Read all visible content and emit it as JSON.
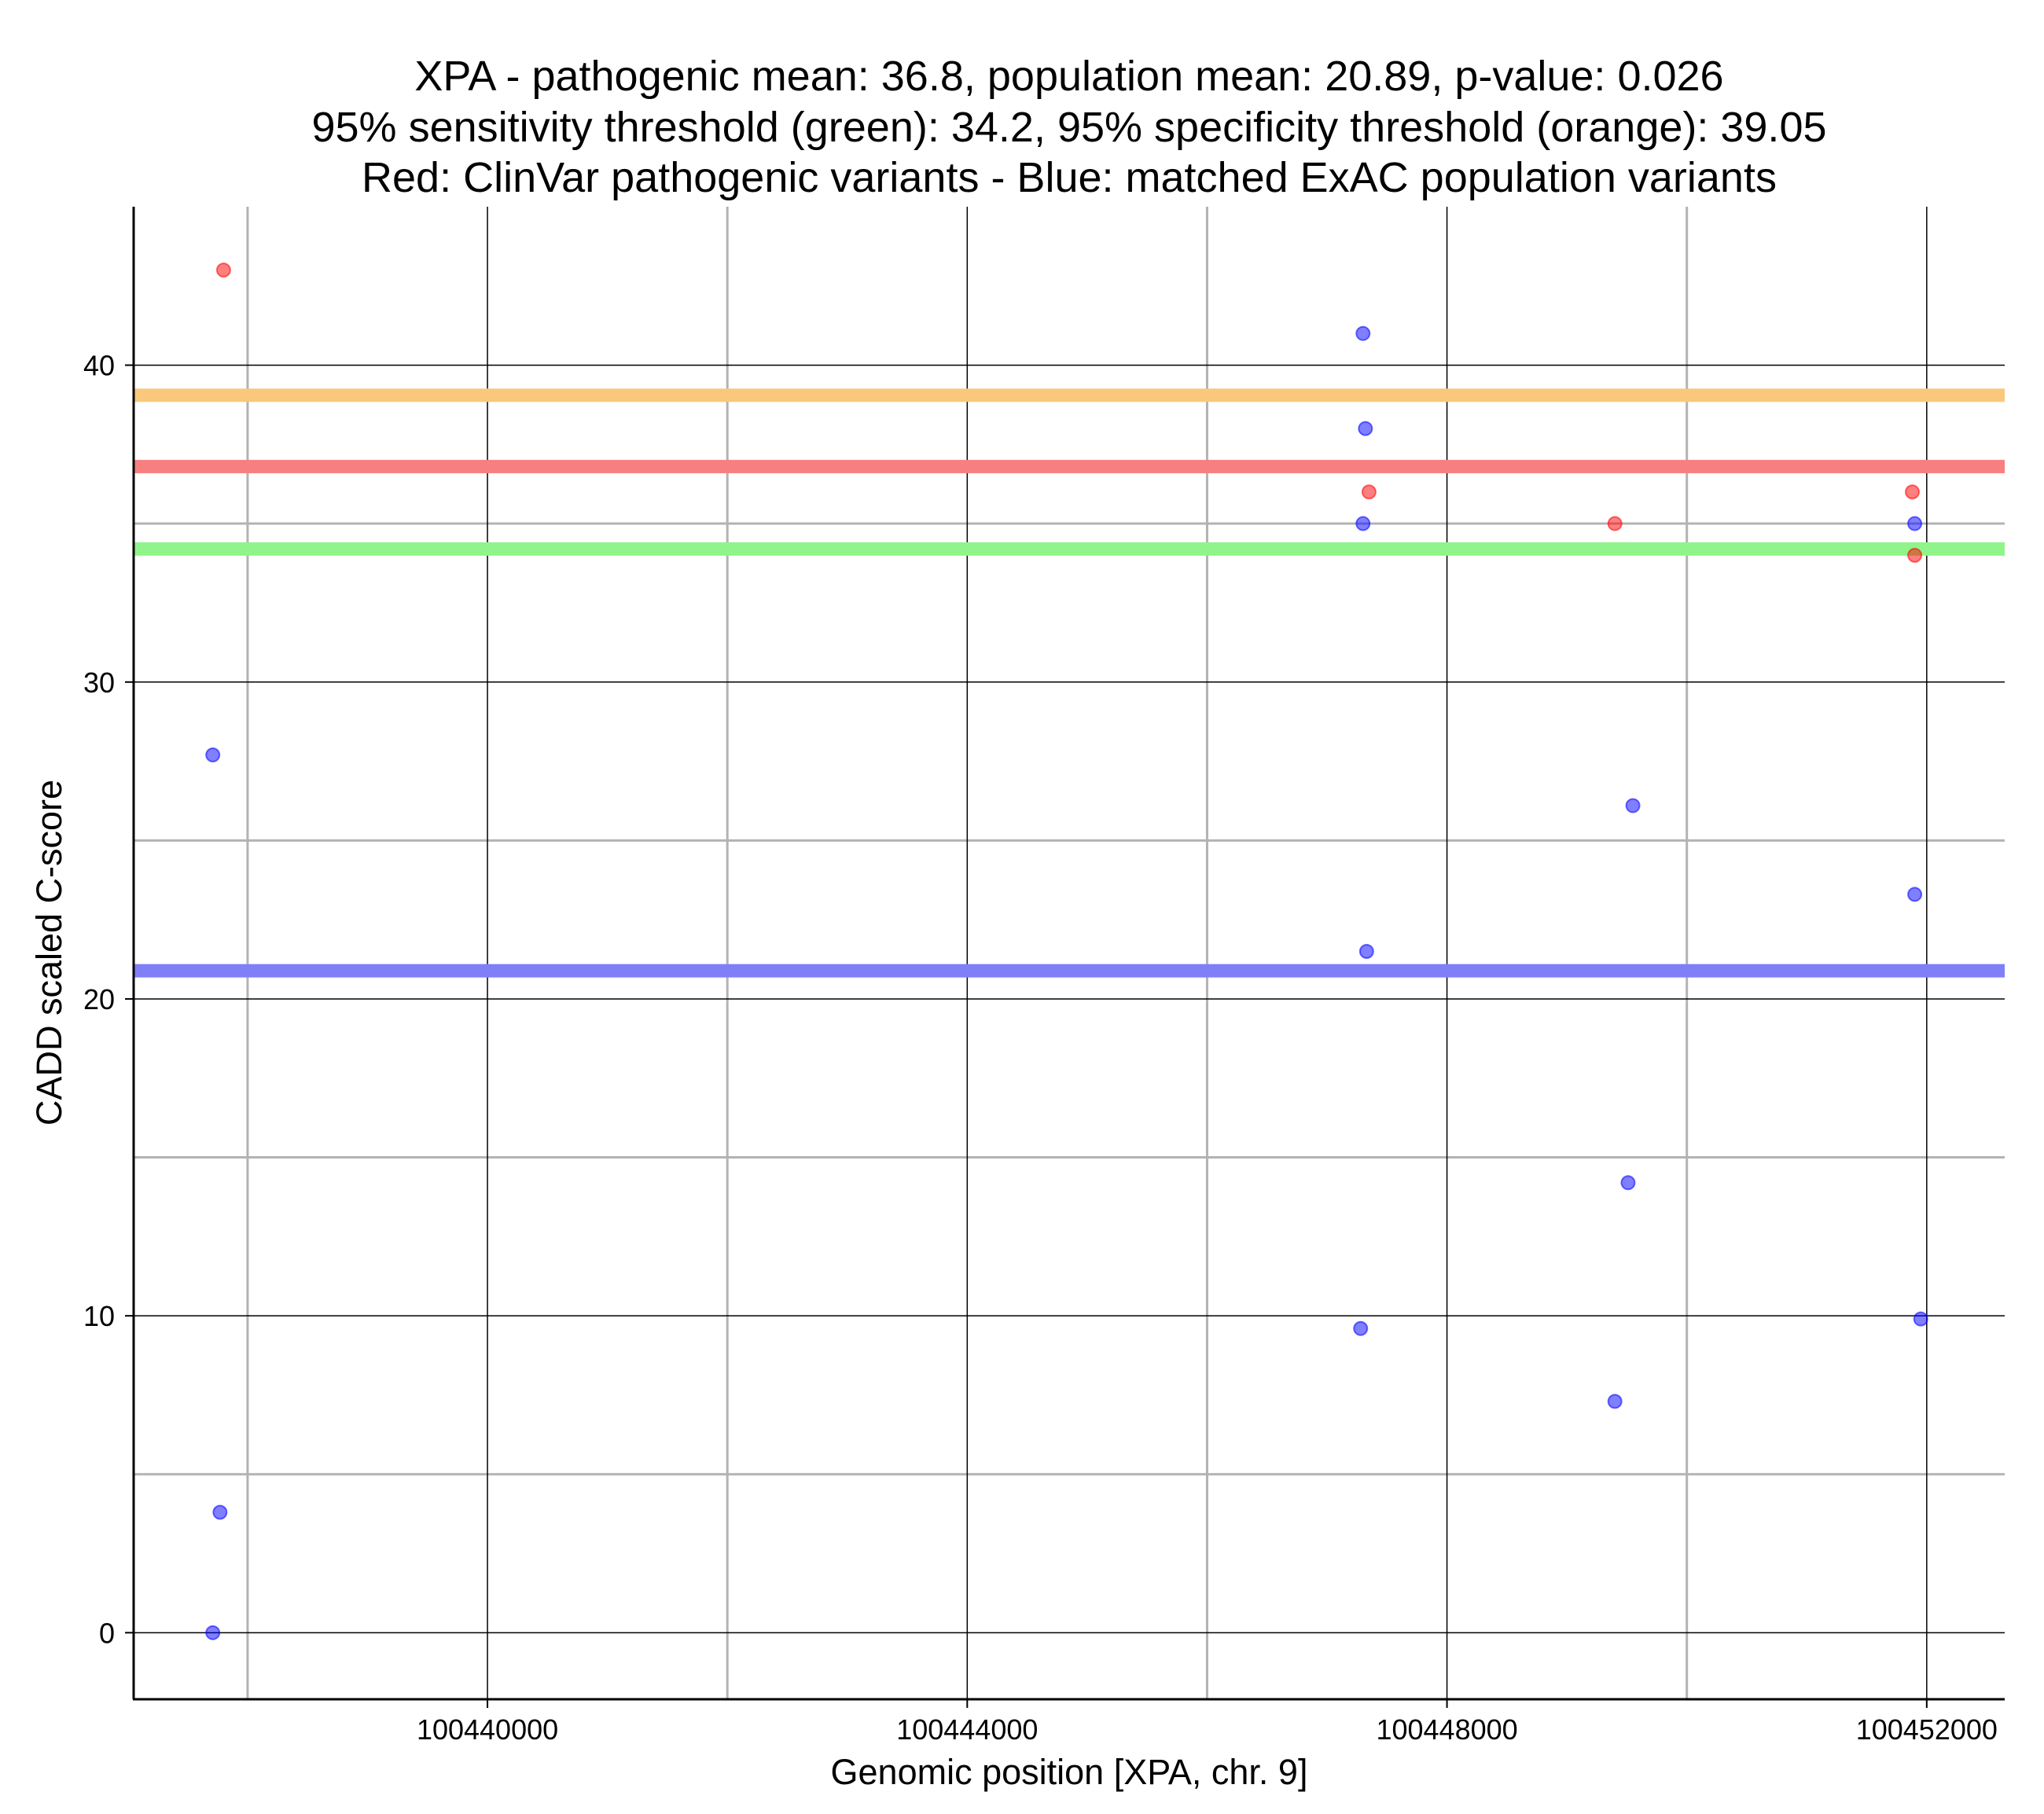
{
  "chart_data": {
    "type": "scatter",
    "title_lines": [
      "XPA - pathogenic mean: 36.8, population mean: 20.89, p-value: 0.026",
      "95% sensitivity threshold (green): 34.2, 95% specificity threshold (orange): 39.05",
      "Red: ClinVar pathogenic variants - Blue: matched ExAC population variants"
    ],
    "xlabel": "Genomic position [XPA, chr. 9]",
    "ylabel": "CADD scaled C-score",
    "xlim": [
      100437050,
      100452650
    ],
    "ylim": [
      -2.1,
      45.0
    ],
    "x_ticks": [
      100440000,
      100444000,
      100448000,
      100452000
    ],
    "x_tick_labels": [
      "100440000",
      "100444000",
      "100448000",
      "100452000"
    ],
    "x_minor_ticks": [
      100438000,
      100442000,
      100446000,
      100450000
    ],
    "y_ticks": [
      0,
      10,
      20,
      30,
      40
    ],
    "y_tick_labels": [
      "0",
      "10",
      "20",
      "30",
      "40"
    ],
    "y_minor_ticks": [
      5,
      15,
      25,
      35
    ],
    "grid": true,
    "reference_lines": [
      {
        "name": "specificity threshold",
        "value": 39.05,
        "color": "#f9c87c"
      },
      {
        "name": "pathogenic mean",
        "value": 36.8,
        "color": "#f77f80"
      },
      {
        "name": "sensitivity threshold",
        "value": 34.2,
        "color": "#8ff58a"
      },
      {
        "name": "population mean",
        "value": 20.89,
        "color": "#7f7ff7"
      }
    ],
    "series": [
      {
        "name": "ClinVar pathogenic variants",
        "color": "#ff0000",
        "points": [
          {
            "x": 100437800,
            "y": 43.0
          },
          {
            "x": 100447350,
            "y": 36.0
          },
          {
            "x": 100449400,
            "y": 35.0
          },
          {
            "x": 100451880,
            "y": 36.0
          },
          {
            "x": 100451900,
            "y": 34.0
          }
        ]
      },
      {
        "name": "matched ExAC population variants",
        "color": "#0000ff",
        "points": [
          {
            "x": 100437710,
            "y": 27.7
          },
          {
            "x": 100437770,
            "y": 3.8
          },
          {
            "x": 100437710,
            "y": 0.0
          },
          {
            "x": 100447300,
            "y": 41.0
          },
          {
            "x": 100447320,
            "y": 38.0
          },
          {
            "x": 100447300,
            "y": 35.0
          },
          {
            "x": 100447330,
            "y": 21.5
          },
          {
            "x": 100447280,
            "y": 9.6
          },
          {
            "x": 100449550,
            "y": 26.1
          },
          {
            "x": 100449510,
            "y": 14.2
          },
          {
            "x": 100449400,
            "y": 7.3
          },
          {
            "x": 100451900,
            "y": 35.0
          },
          {
            "x": 100451900,
            "y": 23.3
          },
          {
            "x": 100451950,
            "y": 9.9
          }
        ]
      }
    ]
  }
}
